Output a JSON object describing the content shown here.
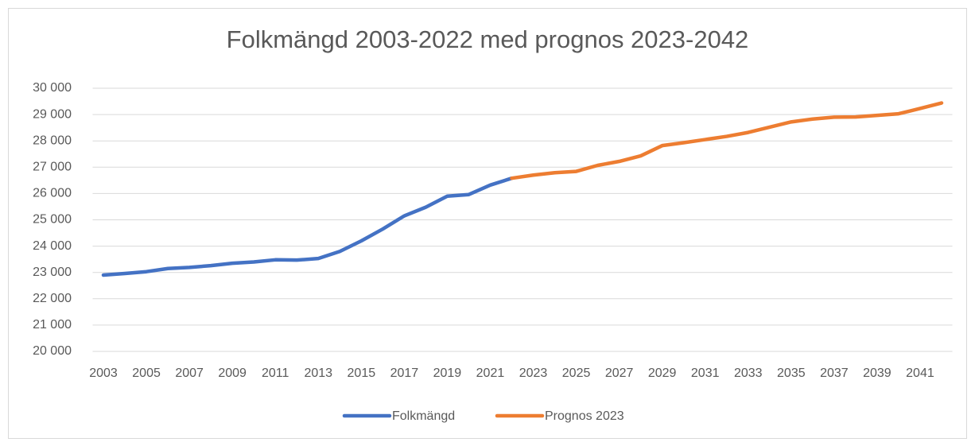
{
  "chart_data": {
    "type": "line",
    "title": "Folkmängd 2003-2022 med prognos 2023-2042",
    "categories": [
      "2003",
      null,
      "2005",
      null,
      "2007",
      null,
      "2009",
      null,
      "2011",
      null,
      "2013",
      null,
      "2015",
      null,
      "2017",
      null,
      "2019",
      null,
      "2021",
      null,
      "2023",
      null,
      "2025",
      null,
      "2027",
      null,
      "2029",
      null,
      "2031",
      null,
      "2033",
      null,
      "2035",
      null,
      "2037",
      null,
      "2039",
      null,
      "2041",
      null
    ],
    "series": [
      {
        "name": "Folkmängd",
        "color": "#4472c4",
        "values": [
          22900,
          22960,
          23030,
          23150,
          23190,
          23260,
          23350,
          23400,
          23480,
          23470,
          23530,
          23800,
          24200,
          24650,
          25150,
          25480,
          25900,
          25960,
          26320,
          26580,
          null,
          null,
          null,
          null,
          null,
          null,
          null,
          null,
          null,
          null,
          null,
          null,
          null,
          null,
          null,
          null,
          null,
          null,
          null,
          null
        ]
      },
      {
        "name": "Prognos 2023",
        "color": "#ed7d31",
        "values": [
          null,
          null,
          null,
          null,
          null,
          null,
          null,
          null,
          null,
          null,
          null,
          null,
          null,
          null,
          null,
          null,
          null,
          null,
          null,
          26580,
          26700,
          26790,
          26840,
          27070,
          27220,
          27430,
          27820,
          27930,
          28050,
          28170,
          28320,
          28520,
          28720,
          28830,
          28900,
          28910,
          28970,
          29030,
          29230,
          29440
        ]
      }
    ],
    "ylim": [
      20000,
      30000
    ],
    "yticks": [
      {
        "value": 20000,
        "label": "20 000"
      },
      {
        "value": 21000,
        "label": "21 000"
      },
      {
        "value": 22000,
        "label": "22 000"
      },
      {
        "value": 23000,
        "label": "23 000"
      },
      {
        "value": 24000,
        "label": "24 000"
      },
      {
        "value": 25000,
        "label": "25 000"
      },
      {
        "value": 26000,
        "label": "26 000"
      },
      {
        "value": 27000,
        "label": "27 000"
      },
      {
        "value": 28000,
        "label": "28 000"
      },
      {
        "value": 29000,
        "label": "29 000"
      },
      {
        "value": 30000,
        "label": "30 000"
      }
    ],
    "grid": true,
    "legend": "bottom"
  }
}
